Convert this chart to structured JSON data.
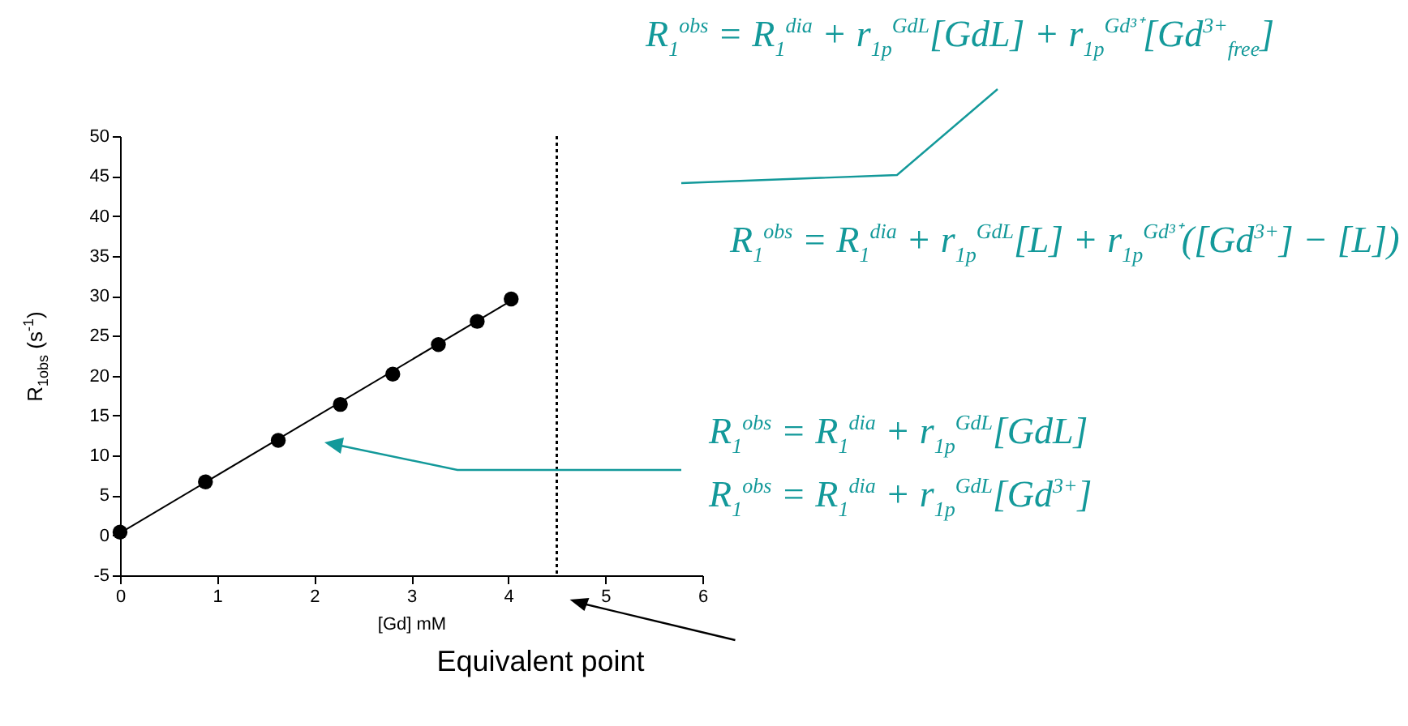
{
  "chart_data": {
    "type": "scatter",
    "xlabel": "[Gd] mM",
    "ylabel": "R$_{1obs}$ (s$^{-1}$)",
    "x": [
      0,
      0.88,
      1.63,
      2.27,
      2.81,
      3.28,
      3.68,
      4.03
    ],
    "series": [
      {
        "type": "scatter",
        "color": "#000000",
        "marker": "circle",
        "values": [
          0.4,
          6.7,
          11.9,
          16.4,
          20.2,
          23.9,
          26.8,
          29.6
        ]
      },
      {
        "type": "line",
        "color": "#000000",
        "marker": "none",
        "x": [
          0,
          4.1
        ],
        "values": [
          0.3,
          29.9
        ]
      }
    ],
    "xlim": [
      0,
      6
    ],
    "xticks": [
      0,
      1,
      2,
      3,
      4,
      5,
      6
    ],
    "ylim": [
      -5,
      50
    ],
    "yticks": [
      -5,
      0,
      5,
      10,
      15,
      20,
      25,
      30,
      35,
      40,
      45,
      50
    ],
    "ref_lines": [
      {
        "axis": "x",
        "value": 4.5,
        "label": "Equivalent point",
        "color": "#000000",
        "line_style": "dotted"
      }
    ],
    "annotations": [
      "R$_{1}$$^{obs}$ = R$_{1}$$^{dia}$ + r$_{1p}$$^{GdL}$[GdL] + r$_{1p}$$^{Gd³⁺}$[Gd$^{3+}$$_{free}$]",
      "R$_{1}$$^{obs}$ = R$_{1}$$^{dia}$ + r$_{1p}$$^{GdL}$[L] + r$_{1p}$$^{Gd³⁺}$([Gd$^{3+}$] − [L])",
      "R$_{1}$$^{obs}$ = R$_{1}$$^{dia}$ + r$_{1p}$$^{GdL}$[GdL]",
      "R$_{1}$$^{obs}$ = R$_{1}$$^{dia}$ + r$_{1p}$$^{GdL}$[Gd$^{3+}$]"
    ]
  }
}
